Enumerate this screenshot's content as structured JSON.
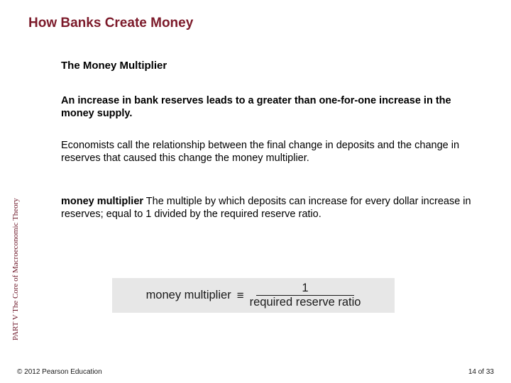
{
  "title": "How Banks Create Money",
  "subtitle": "The Money Multiplier",
  "para1": "An increase in bank reserves leads to a greater than one-for-one increase in the money supply.",
  "para2": "Economists call the relationship between the final change in deposits and the change in reserves that caused this change the money multiplier.",
  "para3_lead": "money multiplier",
  "para3_rest": "  The multiple by which deposits can increase for every dollar increase in reserves; equal to 1 divided by the required reserve ratio.",
  "vlabel": "PART V  The Core of Macroeconomic Theory",
  "copyright": "© 2012 Pearson Education",
  "page_current": "14",
  "page_sep": " of ",
  "page_total": "33",
  "formula": {
    "lhs": "money multiplier",
    "eq": "≡",
    "numerator": "1",
    "denominator": "required reserve ratio",
    "bg_color": "#e7e7e7",
    "text_color": "#1a1a1a",
    "fontsize": 16.5
  },
  "colors": {
    "title": "#7c1a2a",
    "vlabel": "#6b1426",
    "body": "#000000",
    "footer": "#1a1a1a",
    "page_bg": "#ffffff"
  },
  "fontsizes": {
    "title": 19,
    "subtitle": 15,
    "body": 14.5,
    "vlabel": 11,
    "footer": 10
  }
}
